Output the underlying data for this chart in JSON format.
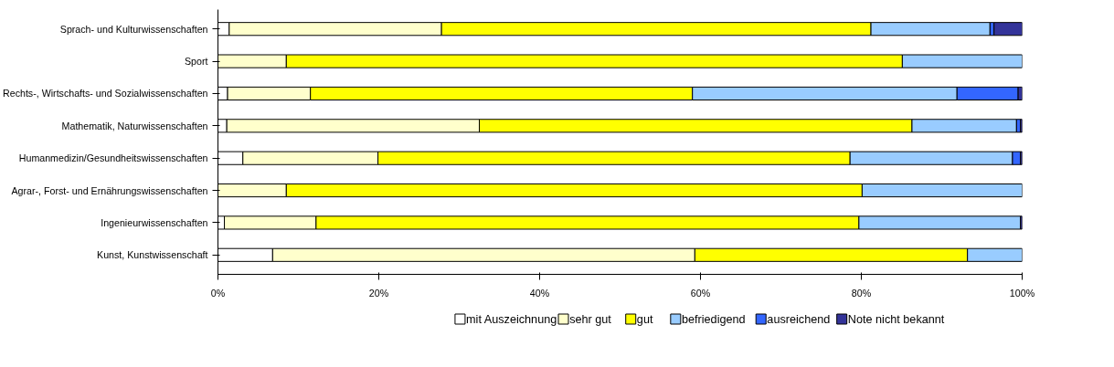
{
  "chart_data": {
    "type": "bar",
    "orientation": "horizontal",
    "stacked": true,
    "categories": [
      "Sprach- und Kulturwissenschaften",
      "Sport",
      "Rechts-, Wirtschafts- und Sozialwissenschaften",
      "Mathematik, Naturwissenschaften",
      "Humanmedizin/Gesundheitswissenschaften",
      "Agrar-, Forst- und Ernährungswissenschaften",
      "Ingenieurwissenschaften",
      "Kunst, Kunstwissenschaft"
    ],
    "series": [
      {
        "name": "mit Auszeichnung",
        "color": "#ffffff",
        "values": [
          1.4,
          0,
          1.2,
          1.1,
          3.1,
          0,
          0.8,
          6.8
        ]
      },
      {
        "name": "sehr gut",
        "color": "#ffffcc",
        "values": [
          26.4,
          8.5,
          10.3,
          31.4,
          16.8,
          8.5,
          11.4,
          52.5
        ]
      },
      {
        "name": "gut",
        "color": "#ffff00",
        "values": [
          53.4,
          76.6,
          47.5,
          53.8,
          58.7,
          71.6,
          67.5,
          33.9
        ]
      },
      {
        "name": "befriedigend",
        "color": "#99ccff",
        "values": [
          14.8,
          14.9,
          32.9,
          13.0,
          20.2,
          19.9,
          20.1,
          6.8
        ]
      },
      {
        "name": "ausreichend",
        "color": "#3366ff",
        "values": [
          0.5,
          0,
          7.6,
          0.5,
          1.0,
          0,
          0,
          0
        ]
      },
      {
        "name": "Note nicht bekannt",
        "color": "#333399",
        "values": [
          3.5,
          0,
          0.5,
          0.2,
          0.2,
          0,
          0.2,
          0
        ]
      }
    ],
    "xlim": [
      0,
      100
    ],
    "xticks": [
      {
        "value": 0,
        "label": "0%"
      },
      {
        "value": 20,
        "label": "20%"
      },
      {
        "value": 40,
        "label": "40%"
      },
      {
        "value": 60,
        "label": "60%"
      },
      {
        "value": 80,
        "label": "80%"
      },
      {
        "value": 100,
        "label": "100%"
      }
    ],
    "grid": false,
    "legend": "bottom"
  }
}
